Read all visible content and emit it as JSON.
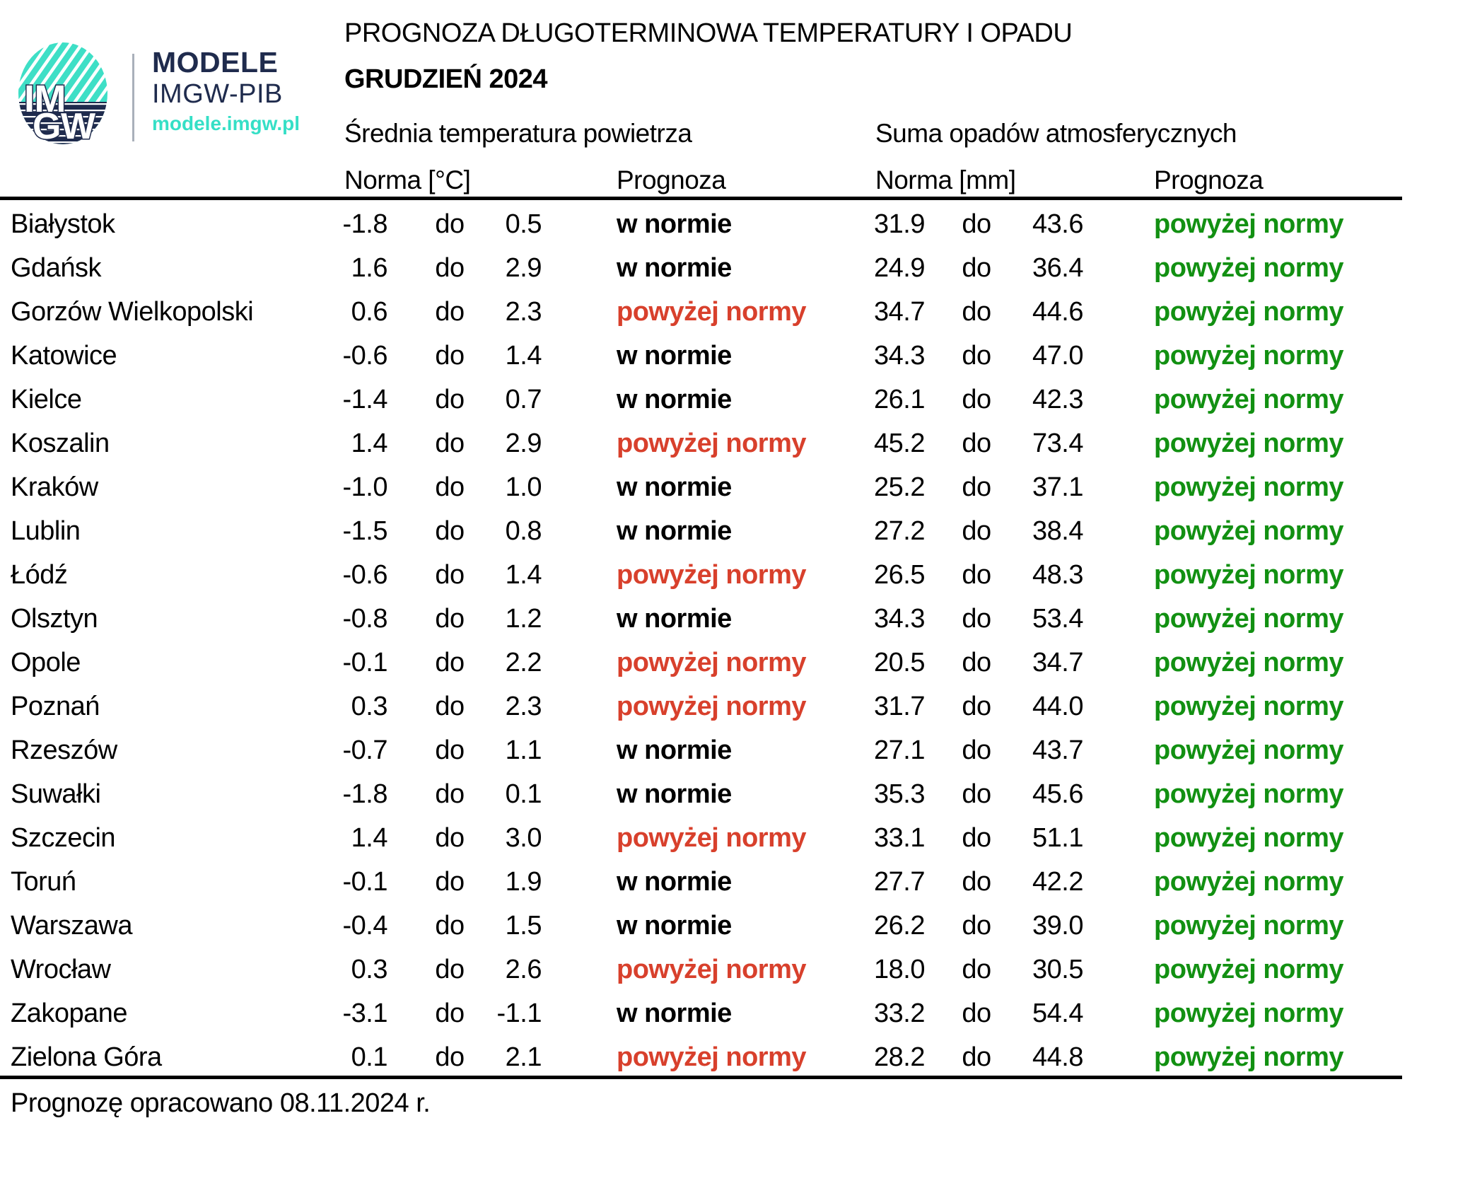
{
  "branding": {
    "logo_line1": "IM",
    "logo_line2": "GW",
    "brand_title": "MODELE",
    "brand_subtitle": "IMGW-PIB",
    "brand_url": "modele.imgw.pl"
  },
  "header": {
    "title": "PROGNOZA DŁUGOTERMINOWA TEMPERATURY I OPADU",
    "subtitle": "GRUDZIEŃ 2024"
  },
  "table": {
    "group_headers": {
      "temperature": "Średnia temperatura powietrza",
      "precipitation": "Suma opadów atmosferycznych"
    },
    "column_headers": {
      "temp_norm": "Norma [°C]",
      "temp_forecast": "Prognoza",
      "precip_norm": "Norma [mm]",
      "precip_forecast": "Prognoza"
    },
    "range_separator": "do",
    "forecast_labels": {
      "normal": "w normie",
      "above": "powyżej normy"
    },
    "rows": [
      {
        "city": "Białystok",
        "temp_norm_low": "-1.8",
        "temp_norm_high": "0.5",
        "temp_forecast": "w normie",
        "precip_norm_low": "31.9",
        "precip_norm_high": "43.6",
        "precip_forecast": "powyżej normy"
      },
      {
        "city": "Gdańsk",
        "temp_norm_low": "1.6",
        "temp_norm_high": "2.9",
        "temp_forecast": "w normie",
        "precip_norm_low": "24.9",
        "precip_norm_high": "36.4",
        "precip_forecast": "powyżej normy"
      },
      {
        "city": "Gorzów Wielkopolski",
        "temp_norm_low": "0.6",
        "temp_norm_high": "2.3",
        "temp_forecast": "powyżej normy",
        "precip_norm_low": "34.7",
        "precip_norm_high": "44.6",
        "precip_forecast": "powyżej normy"
      },
      {
        "city": "Katowice",
        "temp_norm_low": "-0.6",
        "temp_norm_high": "1.4",
        "temp_forecast": "w normie",
        "precip_norm_low": "34.3",
        "precip_norm_high": "47.0",
        "precip_forecast": "powyżej normy"
      },
      {
        "city": "Kielce",
        "temp_norm_low": "-1.4",
        "temp_norm_high": "0.7",
        "temp_forecast": "w normie",
        "precip_norm_low": "26.1",
        "precip_norm_high": "42.3",
        "precip_forecast": "powyżej normy"
      },
      {
        "city": "Koszalin",
        "temp_norm_low": "1.4",
        "temp_norm_high": "2.9",
        "temp_forecast": "powyżej normy",
        "precip_norm_low": "45.2",
        "precip_norm_high": "73.4",
        "precip_forecast": "powyżej normy"
      },
      {
        "city": "Kraków",
        "temp_norm_low": "-1.0",
        "temp_norm_high": "1.0",
        "temp_forecast": "w normie",
        "precip_norm_low": "25.2",
        "precip_norm_high": "37.1",
        "precip_forecast": "powyżej normy"
      },
      {
        "city": "Lublin",
        "temp_norm_low": "-1.5",
        "temp_norm_high": "0.8",
        "temp_forecast": "w normie",
        "precip_norm_low": "27.2",
        "precip_norm_high": "38.4",
        "precip_forecast": "powyżej normy"
      },
      {
        "city": "Łódź",
        "temp_norm_low": "-0.6",
        "temp_norm_high": "1.4",
        "temp_forecast": "powyżej normy",
        "precip_norm_low": "26.5",
        "precip_norm_high": "48.3",
        "precip_forecast": "powyżej normy"
      },
      {
        "city": "Olsztyn",
        "temp_norm_low": "-0.8",
        "temp_norm_high": "1.2",
        "temp_forecast": "w normie",
        "precip_norm_low": "34.3",
        "precip_norm_high": "53.4",
        "precip_forecast": "powyżej normy"
      },
      {
        "city": "Opole",
        "temp_norm_low": "-0.1",
        "temp_norm_high": "2.2",
        "temp_forecast": "powyżej normy",
        "precip_norm_low": "20.5",
        "precip_norm_high": "34.7",
        "precip_forecast": "powyżej normy"
      },
      {
        "city": "Poznań",
        "temp_norm_low": "0.3",
        "temp_norm_high": "2.3",
        "temp_forecast": "powyżej normy",
        "precip_norm_low": "31.7",
        "precip_norm_high": "44.0",
        "precip_forecast": "powyżej normy"
      },
      {
        "city": "Rzeszów",
        "temp_norm_low": "-0.7",
        "temp_norm_high": "1.1",
        "temp_forecast": "w normie",
        "precip_norm_low": "27.1",
        "precip_norm_high": "43.7",
        "precip_forecast": "powyżej normy"
      },
      {
        "city": "Suwałki",
        "temp_norm_low": "-1.8",
        "temp_norm_high": "0.1",
        "temp_forecast": "w normie",
        "precip_norm_low": "35.3",
        "precip_norm_high": "45.6",
        "precip_forecast": "powyżej normy"
      },
      {
        "city": "Szczecin",
        "temp_norm_low": "1.4",
        "temp_norm_high": "3.0",
        "temp_forecast": "powyżej normy",
        "precip_norm_low": "33.1",
        "precip_norm_high": "51.1",
        "precip_forecast": "powyżej normy"
      },
      {
        "city": "Toruń",
        "temp_norm_low": "-0.1",
        "temp_norm_high": "1.9",
        "temp_forecast": "w normie",
        "precip_norm_low": "27.7",
        "precip_norm_high": "42.2",
        "precip_forecast": "powyżej normy"
      },
      {
        "city": "Warszawa",
        "temp_norm_low": "-0.4",
        "temp_norm_high": "1.5",
        "temp_forecast": "w normie",
        "precip_norm_low": "26.2",
        "precip_norm_high": "39.0",
        "precip_forecast": "powyżej normy"
      },
      {
        "city": "Wrocław",
        "temp_norm_low": "0.3",
        "temp_norm_high": "2.6",
        "temp_forecast": "powyżej normy",
        "precip_norm_low": "18.0",
        "precip_norm_high": "30.5",
        "precip_forecast": "powyżej normy"
      },
      {
        "city": "Zakopane",
        "temp_norm_low": "-3.1",
        "temp_norm_high": "-1.1",
        "temp_forecast": "w normie",
        "precip_norm_low": "33.2",
        "precip_norm_high": "54.4",
        "precip_forecast": "powyżej normy"
      },
      {
        "city": "Zielona Góra",
        "temp_norm_low": "0.1",
        "temp_norm_high": "2.1",
        "temp_forecast": "powyżej normy",
        "precip_norm_low": "28.2",
        "precip_norm_high": "44.8",
        "precip_forecast": "powyżej normy"
      }
    ]
  },
  "footer": {
    "note": "Prognozę opracowano 08.11.2024 r."
  },
  "colors": {
    "brand_navy": "#1f2b4d",
    "brand_teal": "#35dfc6",
    "above_temp": "#d8402c",
    "above_precip": "#129012",
    "text_black": "#000000"
  }
}
